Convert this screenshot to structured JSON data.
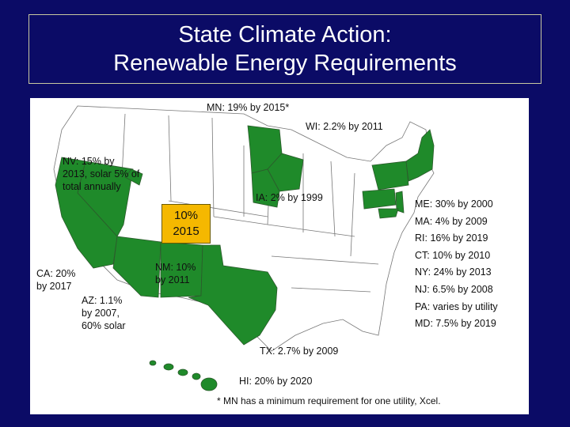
{
  "title": {
    "line1": "State Climate Action:",
    "line2": "Renewable Energy Requirements"
  },
  "colors": {
    "background": "#0b0b66",
    "requirement_state": "#1f8a2a",
    "other_state": "#ffffff",
    "callout": "#f5b800"
  },
  "labels": {
    "mn": "MN: 19% by 2015*",
    "wi": "WI: 2.2% by 2011",
    "nv": [
      "NV: 15% by",
      "2013, solar 5% of",
      "total annually"
    ],
    "ia": "IA: 2% by 1999",
    "ca": [
      "CA: 20%",
      "by 2017"
    ],
    "nm": [
      "NM: 10%",
      "by 2011"
    ],
    "az": [
      "AZ: 1.1%",
      "by 2007,",
      "60% solar"
    ],
    "tx": "TX: 2.7% by 2009",
    "hi": "HI: 20% by 2020"
  },
  "callout": {
    "line1": "10%",
    "line2": "2015"
  },
  "legend": [
    "ME: 30% by 2000",
    "MA: 4% by 2009",
    "RI: 16% by 2019",
    "CT: 10% by 2010",
    "NY: 24% by 2013",
    "NJ: 6.5% by 2008",
    "PA: varies by utility",
    "MD: 7.5% by 2019"
  ],
  "footnote": "* MN has a minimum requirement for one utility, Xcel."
}
